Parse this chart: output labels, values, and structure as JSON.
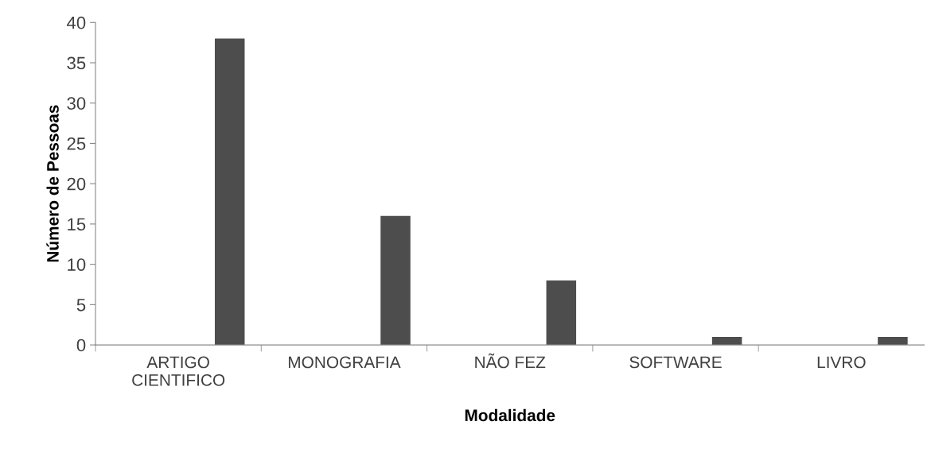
{
  "chart_data": {
    "type": "bar",
    "xlabel": "Modalidade",
    "ylabel": "Número de Pessoas",
    "categories": [
      "ARTIGO\nCIENTIFICO",
      "MONOGRAFIA",
      "NÃO FEZ",
      "SOFTWARE",
      "LIVRO"
    ],
    "values": [
      38,
      16,
      8,
      1,
      1
    ],
    "color": "#4d4d4d",
    "ylim": [
      0,
      40
    ],
    "yticks": [
      0,
      5,
      10,
      15,
      20,
      25,
      30,
      35,
      40
    ],
    "grid": false,
    "legend": false
  }
}
